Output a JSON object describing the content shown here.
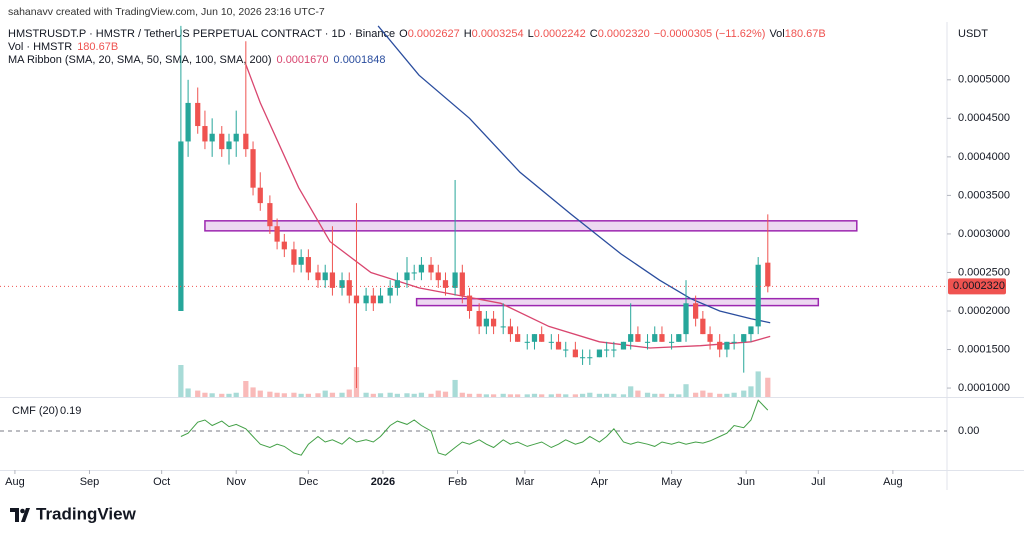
{
  "header": {
    "credit": "sahanavv created with TradingView.com, Jun 10, 2026 23:16 UTC-7"
  },
  "legend": {
    "symbol": "HMSTRUSDT.P · HMSTR / TetherUS PERPETUAL CONTRACT · 1D · Binance",
    "ohlc": [
      {
        "key": "O",
        "value": "0.0002627"
      },
      {
        "key": "H",
        "value": "0.0003254"
      },
      {
        "key": "L",
        "value": "0.0002242"
      },
      {
        "key": "C",
        "value": "0.0002320"
      }
    ],
    "change": "−0.0000305 (−11.62%)",
    "vol_key": "Vol",
    "volume_label": "Vol · HMSTR",
    "volume_value": "180.67B",
    "ma_label": "MA Ribbon (SMA, 20, SMA, 50, SMA, 100, SMA, 200)",
    "ma_values": [
      "0.0001670",
      "0.0001848"
    ]
  },
  "branding": {
    "name": "TradingView"
  },
  "chart_data": {
    "type": "candlestick",
    "unit": "USDT",
    "up_color": "#26a69a",
    "down_color": "#ef5350",
    "x": [
      69,
      72,
      76,
      79,
      82,
      86,
      89,
      92,
      96,
      99,
      102,
      106,
      109,
      112,
      116,
      119,
      122,
      126,
      129,
      132,
      136,
      139,
      142,
      146,
      149,
      152,
      156,
      159,
      163,
      166,
      169,
      173,
      176,
      179,
      183,
      186,
      189,
      193,
      196,
      199,
      203,
      206,
      209,
      213,
      216,
      219,
      223,
      226,
      229,
      233,
      236,
      239,
      243,
      246,
      249,
      253,
      256,
      259,
      263,
      266,
      269,
      273,
      276,
      279,
      283,
      286,
      289,
      293,
      296,
      299,
      303,
      306,
      309,
      313
    ],
    "open": [
      0.0002,
      0.00042,
      0.00047,
      0.00044,
      0.00042,
      0.00043,
      0.00041,
      0.00042,
      0.00043,
      0.00041,
      0.00036,
      0.00034,
      0.00031,
      0.00029,
      0.00028,
      0.00026,
      0.00027,
      0.00025,
      0.00024,
      0.00025,
      0.00023,
      0.00024,
      0.00022,
      0.00021,
      0.00022,
      0.00021,
      0.00022,
      0.00023,
      0.00024,
      0.00025,
      0.00025,
      0.00026,
      0.00025,
      0.00024,
      0.00023,
      0.00025,
      0.00022,
      0.0002,
      0.00018,
      0.00019,
      0.00018,
      0.00018,
      0.00017,
      0.00016,
      0.00016,
      0.00017,
      0.00016,
      0.00016,
      0.00015,
      0.00015,
      0.00014,
      0.00014,
      0.00014,
      0.00015,
      0.00015,
      0.00015,
      0.00016,
      0.00017,
      0.00016,
      0.00016,
      0.00017,
      0.00016,
      0.00016,
      0.00017,
      0.00021,
      0.00019,
      0.00017,
      0.00016,
      0.00015,
      0.00016,
      0.00016,
      0.00017,
      0.00018,
      0.0002627
    ],
    "high": [
      0.00057,
      0.0005,
      0.00049,
      0.00046,
      0.00045,
      0.00044,
      0.00043,
      0.00046,
      0.00055,
      0.00042,
      0.00038,
      0.00035,
      0.00032,
      0.0003,
      0.00029,
      0.00028,
      0.00028,
      0.00026,
      0.00026,
      0.00031,
      0.00025,
      0.00025,
      0.00034,
      0.00023,
      0.00023,
      0.00023,
      0.00024,
      0.00025,
      0.00027,
      0.00026,
      0.00027,
      0.00027,
      0.00026,
      0.00025,
      0.00037,
      0.00026,
      0.00023,
      0.00021,
      0.0002,
      0.0002,
      0.00021,
      0.00019,
      0.00018,
      0.00017,
      0.00017,
      0.00018,
      0.00017,
      0.00017,
      0.00016,
      0.00016,
      0.00015,
      0.00015,
      0.00015,
      0.00016,
      0.00016,
      0.00016,
      0.00021,
      0.00018,
      0.00017,
      0.00018,
      0.00018,
      0.00017,
      0.00017,
      0.00024,
      0.00022,
      0.0002,
      0.00018,
      0.00017,
      0.00016,
      0.00017,
      0.00017,
      0.00018,
      0.00027,
      0.0003254
    ],
    "low": [
      0.0002,
      0.0004,
      0.00043,
      0.00041,
      0.0004,
      0.0004,
      0.00039,
      0.0004,
      0.0004,
      0.00035,
      0.00033,
      0.0003,
      0.00028,
      0.00027,
      0.00025,
      0.00025,
      0.00024,
      0.00023,
      0.00023,
      0.00022,
      0.00022,
      0.00021,
      0.0001,
      0.0002,
      0.0002,
      0.00021,
      0.00021,
      0.00022,
      0.00023,
      0.00024,
      0.00024,
      0.00024,
      0.00023,
      0.00022,
      0.00022,
      0.00021,
      0.00019,
      0.00017,
      0.00017,
      0.00017,
      0.00017,
      0.00016,
      0.00016,
      0.00015,
      0.00015,
      0.00016,
      0.00015,
      0.00015,
      0.00014,
      0.00014,
      0.00013,
      0.00013,
      0.00014,
      0.00014,
      0.00014,
      0.00015,
      0.00015,
      0.00016,
      0.00015,
      0.00016,
      0.00016,
      0.00015,
      0.00016,
      0.00016,
      0.00018,
      0.00017,
      0.00015,
      0.00014,
      0.00014,
      0.00015,
      0.00012,
      0.00016,
      0.00017,
      0.0002242
    ],
    "close": [
      0.00042,
      0.00047,
      0.00044,
      0.00042,
      0.00043,
      0.00041,
      0.00042,
      0.00043,
      0.00041,
      0.00036,
      0.00034,
      0.00031,
      0.00029,
      0.00028,
      0.00026,
      0.00027,
      0.00025,
      0.00024,
      0.00025,
      0.00023,
      0.00024,
      0.00022,
      0.00021,
      0.00022,
      0.00021,
      0.00022,
      0.00023,
      0.00024,
      0.00025,
      0.00025,
      0.00026,
      0.00025,
      0.00024,
      0.00023,
      0.00025,
      0.00022,
      0.0002,
      0.00018,
      0.00019,
      0.00018,
      0.00018,
      0.00017,
      0.00016,
      0.00016,
      0.00017,
      0.00016,
      0.00016,
      0.00015,
      0.00015,
      0.00014,
      0.00014,
      0.00014,
      0.00015,
      0.00015,
      0.00015,
      0.00016,
      0.00017,
      0.00016,
      0.00016,
      0.00017,
      0.00016,
      0.00016,
      0.00017,
      0.00021,
      0.00019,
      0.00017,
      0.00016,
      0.00015,
      0.00016,
      0.00016,
      0.00017,
      0.00018,
      0.00026,
      0.000232
    ],
    "volume": [
      300,
      80,
      60,
      40,
      35,
      30,
      30,
      40,
      150,
      90,
      60,
      50,
      40,
      35,
      40,
      30,
      30,
      35,
      60,
      40,
      40,
      70,
      280,
      40,
      30,
      35,
      40,
      30,
      35,
      30,
      40,
      30,
      60,
      50,
      160,
      40,
      30,
      30,
      25,
      25,
      30,
      25,
      25,
      25,
      30,
      25,
      25,
      30,
      25,
      25,
      30,
      40,
      30,
      30,
      30,
      25,
      100,
      60,
      40,
      30,
      30,
      30,
      25,
      120,
      40,
      60,
      40,
      30,
      30,
      40,
      60,
      100,
      240,
      180.67
    ],
    "ma": [
      {
        "color": "#d9466f",
        "x": [
          96,
          102,
          118,
          131,
          148,
          168,
          185,
          202,
          222,
          243,
          264,
          285,
          306,
          314
        ],
        "values": [
          0.00052,
          0.00047,
          0.00036,
          0.00029,
          0.00025,
          0.00023,
          0.00022,
          0.00021,
          0.00018,
          0.00016,
          0.000152,
          0.000155,
          0.00016,
          0.000167
        ]
      },
      {
        "color": "#2a4d9e",
        "x": [
          151,
          168,
          189,
          210,
          231,
          252,
          268,
          281,
          293,
          306,
          314
        ],
        "values": [
          0.00057,
          0.000506,
          0.00045,
          0.00038,
          0.000326,
          0.000274,
          0.00024,
          0.000216,
          0.0002,
          0.00019,
          0.0001848
        ]
      }
    ],
    "zones": [
      {
        "x": [
          79,
          350
        ],
        "y": [
          0.000304,
          0.000317
        ]
      },
      {
        "x": [
          167,
          334
        ],
        "y": [
          0.000207,
          0.000216
        ]
      }
    ],
    "zone_color": "#9c27b0",
    "xlim": [
      -6.2,
      387.5
    ],
    "xticks": [
      {
        "value": 0,
        "label": "Aug"
      },
      {
        "value": 31,
        "label": "Sep"
      },
      {
        "value": 61,
        "label": "Oct"
      },
      {
        "value": 92,
        "label": "Nov"
      },
      {
        "value": 122,
        "label": "Dec"
      },
      {
        "value": 153,
        "label": "2026"
      },
      {
        "value": 184,
        "label": "Feb"
      },
      {
        "value": 212,
        "label": "Mar"
      },
      {
        "value": 243,
        "label": "Apr"
      },
      {
        "value": 273,
        "label": "May"
      },
      {
        "value": 304,
        "label": "Jun"
      },
      {
        "value": 334,
        "label": "Jul"
      },
      {
        "value": 365,
        "label": "Aug"
      }
    ],
    "ylim": [
      8.84e-05,
      0.000575
    ],
    "yticks": [
      {
        "value": 0.0001,
        "label": "0.0001000"
      },
      {
        "value": 0.00015,
        "label": "0.0001500"
      },
      {
        "value": 0.0002,
        "label": "0.0002000"
      },
      {
        "value": 0.00025,
        "label": "0.0002500"
      },
      {
        "value": 0.0003,
        "label": "0.0003000"
      },
      {
        "value": 0.00035,
        "label": "0.0003500"
      },
      {
        "value": 0.0004,
        "label": "0.0004000"
      },
      {
        "value": 0.00045,
        "label": "0.0004500"
      },
      {
        "value": 0.0005,
        "label": "0.0005000"
      }
    ],
    "grid": false,
    "cmf": {
      "label": "CMF (20)",
      "color": "#43a047",
      "values": [
        -0.05,
        -0.02,
        0.08,
        0.1,
        0.05,
        0.09,
        0.04,
        0.06,
        0.02,
        -0.05,
        -0.12,
        -0.15,
        -0.12,
        -0.14,
        -0.2,
        -0.22,
        -0.12,
        -0.05,
        -0.1,
        -0.08,
        -0.12,
        -0.06,
        -0.1,
        -0.08,
        -0.1,
        -0.05,
        0.05,
        0.09,
        0.06,
        0.1,
        0.05,
        0,
        -0.2,
        -0.22,
        -0.15,
        -0.1,
        -0.12,
        -0.08,
        -0.12,
        -0.15,
        -0.08,
        -0.12,
        -0.1,
        -0.14,
        -0.12,
        -0.1,
        -0.15,
        -0.12,
        -0.08,
        -0.12,
        -0.1,
        -0.05,
        -0.1,
        -0.05,
        0.02,
        -0.1,
        -0.12,
        -0.1,
        -0.12,
        -0.14,
        -0.1,
        -0.12,
        -0.1,
        -0.12,
        -0.1,
        -0.11,
        -0.09,
        -0.05,
        -0.02,
        0.05,
        0.03,
        0.1,
        0.28,
        0.19
      ],
      "ylim": [
        -0.355,
        0.3
      ],
      "yticks": [
        {
          "value": 0,
          "label": "0.00"
        }
      ]
    }
  }
}
